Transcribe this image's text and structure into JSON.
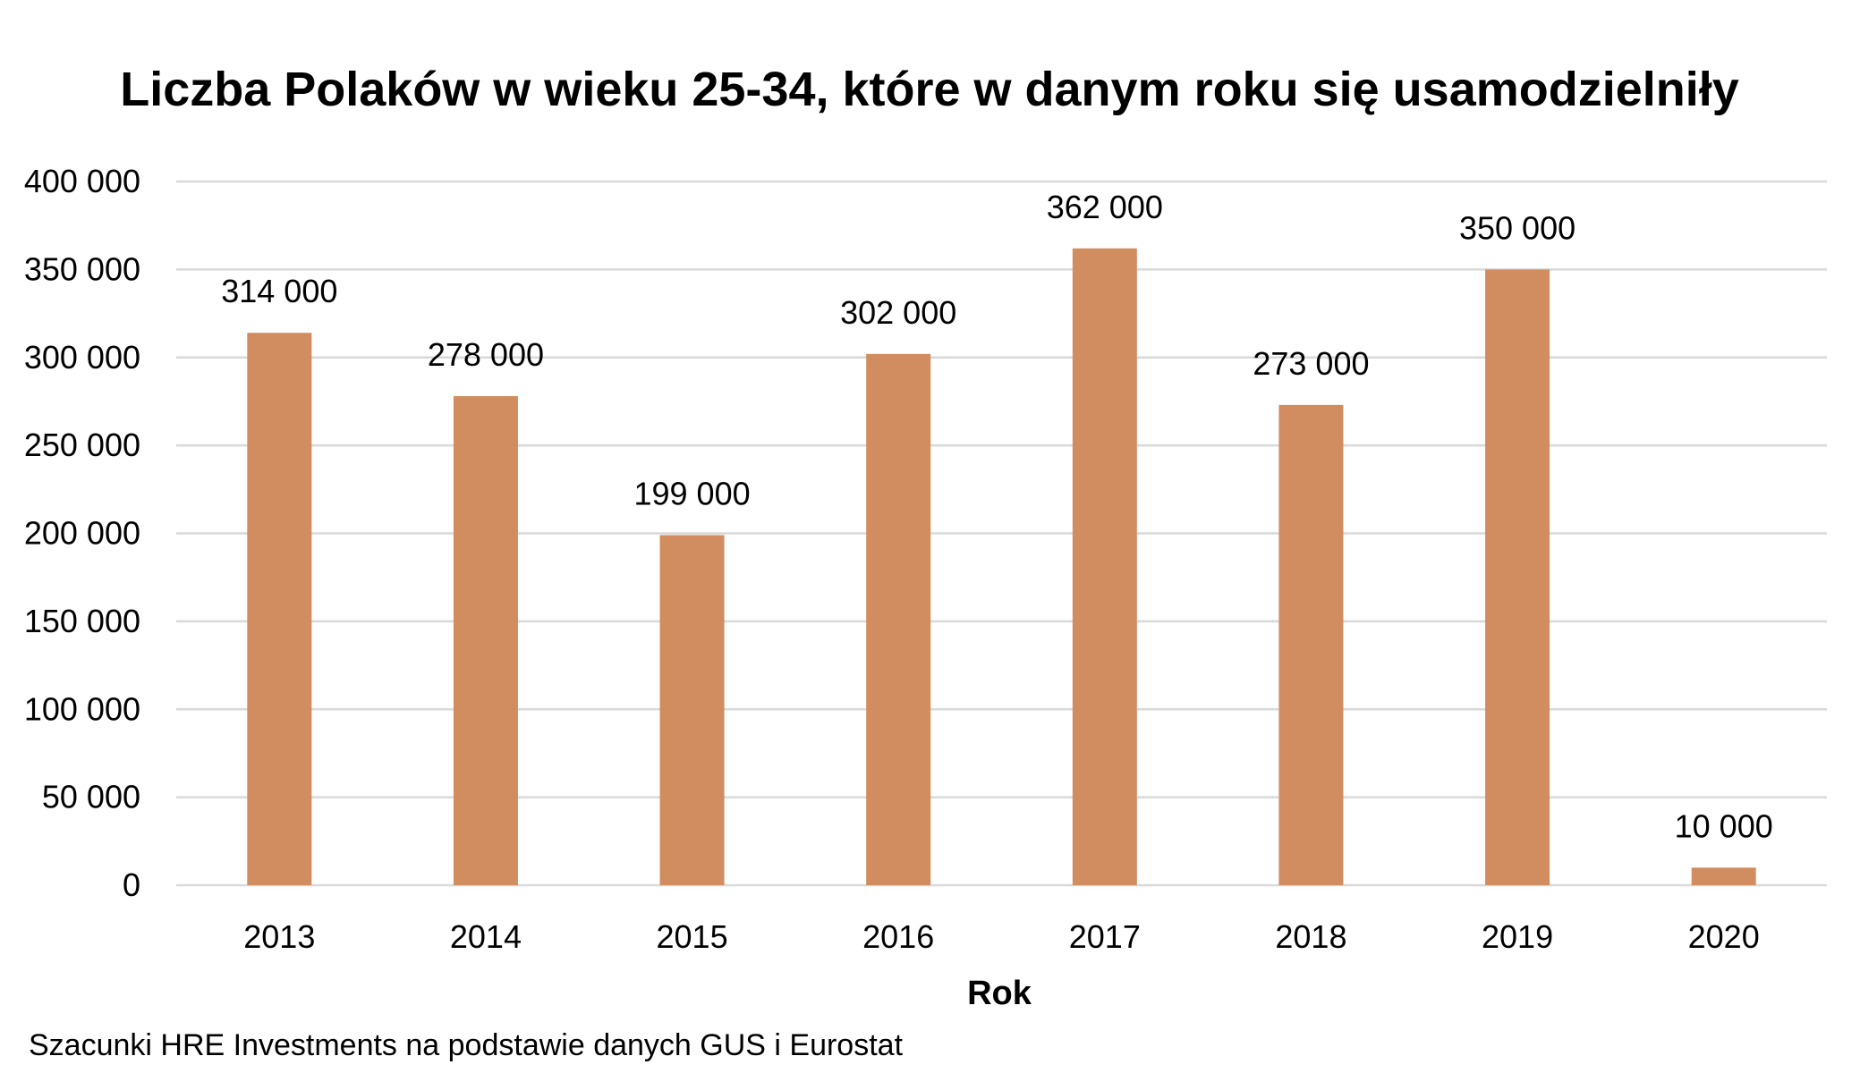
{
  "chart_data": {
    "type": "bar",
    "title": "Liczba Polaków w wieku 25-34, które w danym roku się usamodzielniły",
    "xlabel": "Rok",
    "ylabel": "",
    "categories": [
      "2013",
      "2014",
      "2015",
      "2016",
      "2017",
      "2018",
      "2019",
      "2020"
    ],
    "values": [
      314000,
      278000,
      199000,
      302000,
      362000,
      273000,
      350000,
      10000
    ],
    "data_labels": [
      "314 000",
      "278 000",
      "199 000",
      "302 000",
      "362 000",
      "273 000",
      "350 000",
      "10 000"
    ],
    "ylim": [
      0,
      400000
    ],
    "y_ticks": [
      0,
      50000,
      100000,
      150000,
      200000,
      250000,
      300000,
      350000,
      400000
    ],
    "y_tick_labels": [
      "0",
      "50 000",
      "100 000",
      "150 000",
      "200 000",
      "250 000",
      "300 000",
      "350 000",
      "400 000"
    ],
    "grid": true,
    "legend": "none",
    "bar_color": "#d18c5f",
    "gridline_color": "#d9d9d9"
  },
  "source_note": "Szacunki HRE Investments na podstawie danych GUS i Eurostat"
}
